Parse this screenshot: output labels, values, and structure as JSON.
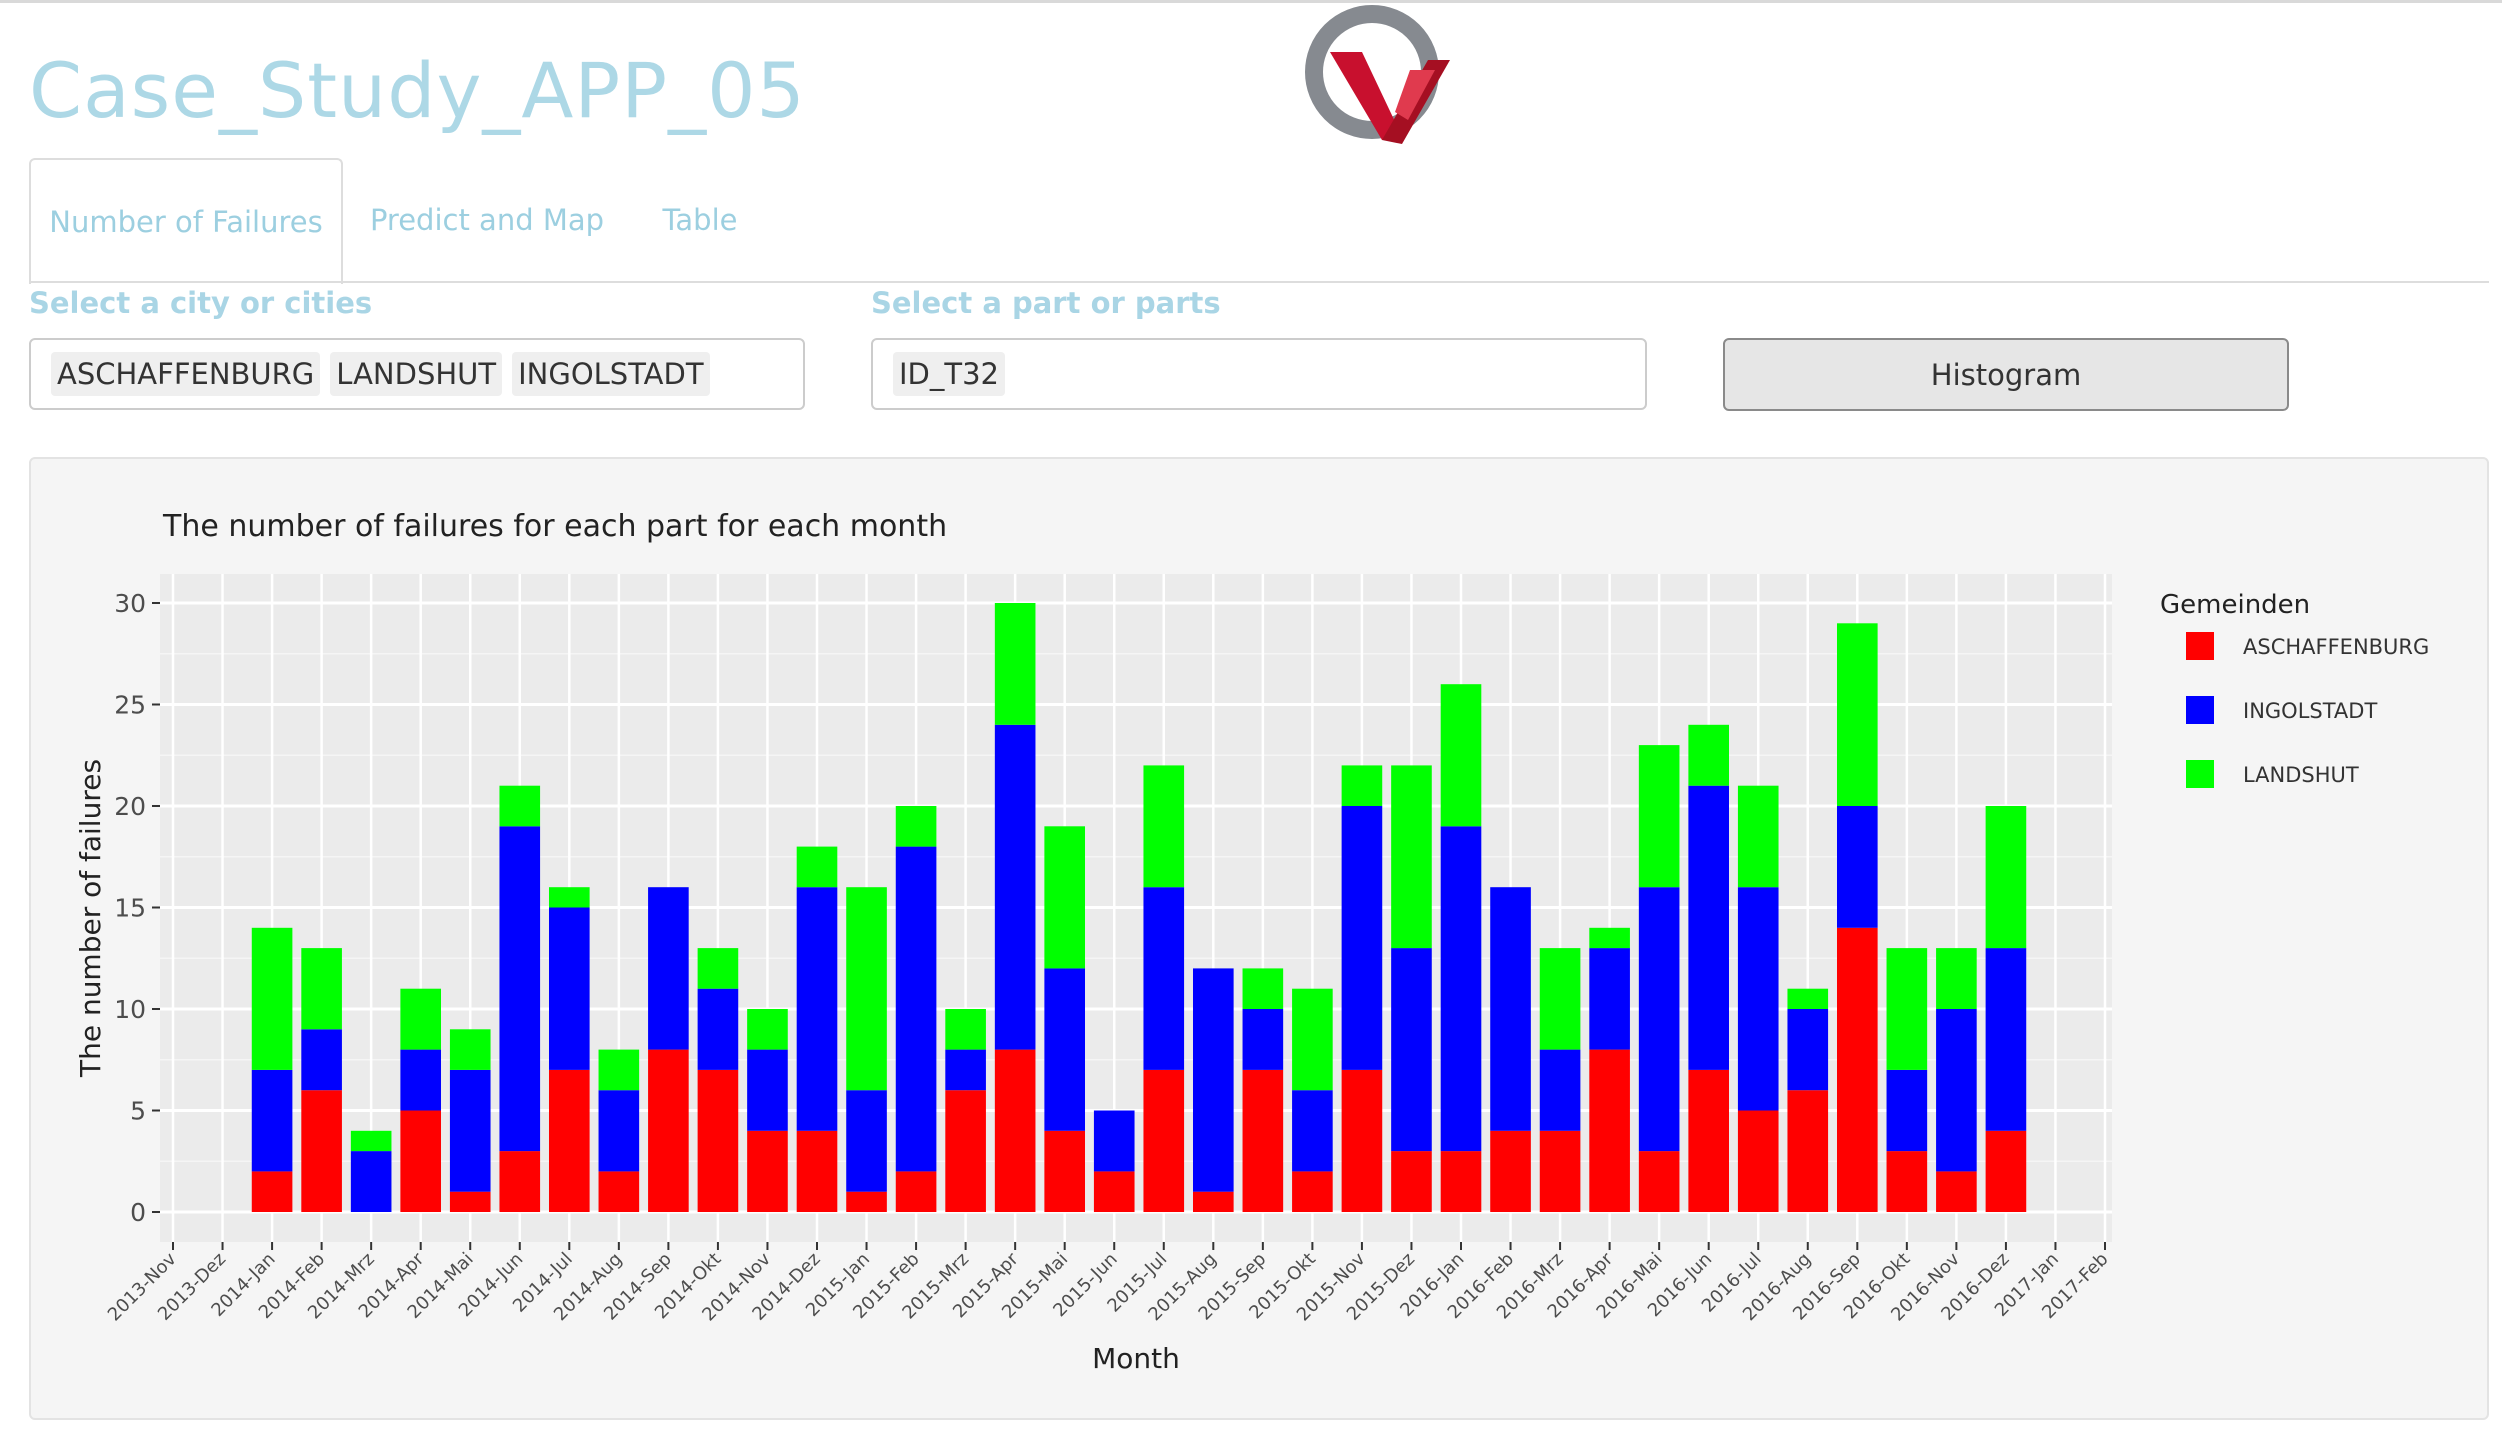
{
  "app": {
    "title": "Case_Study_APP_05"
  },
  "tabs": [
    {
      "label": "Number of Failures"
    },
    {
      "label": "Predict and Map"
    },
    {
      "label": "Table"
    }
  ],
  "controls": {
    "city_label": "Select a city or cities",
    "cities": [
      "ASCHAFFENBURG",
      "LANDSHUT",
      "INGOLSTADT"
    ],
    "part_label": "Select a part or parts",
    "parts": [
      "ID_T32"
    ],
    "histogram_button": "Histogram"
  },
  "colors": {
    "accent": "#add8e6",
    "aschaffenburg": "#ff0000",
    "ingolstadt": "#0000ff",
    "landshut": "#00ff00"
  },
  "chart_data": {
    "type": "bar",
    "stacked": true,
    "title": "The number of failures for each part for each month",
    "xlabel": "Month",
    "ylabel": "The number of failures",
    "ylim": [
      0,
      30
    ],
    "yticks": [
      0,
      5,
      10,
      15,
      20,
      25,
      30
    ],
    "legend_title": "Gemeinden",
    "legend_position": "right",
    "grid": true,
    "categories": [
      "2013-Nov",
      "2013-Dez",
      "2014-Jan",
      "2014-Feb",
      "2014-Mrz",
      "2014-Apr",
      "2014-Mai",
      "2014-Jun",
      "2014-Jul",
      "2014-Aug",
      "2014-Sep",
      "2014-Okt",
      "2014-Nov",
      "2014-Dez",
      "2015-Jan",
      "2015-Feb",
      "2015-Mrz",
      "2015-Apr",
      "2015-Mai",
      "2015-Jun",
      "2015-Jul",
      "2015-Aug",
      "2015-Sep",
      "2015-Okt",
      "2015-Nov",
      "2015-Dez",
      "2016-Jan",
      "2016-Feb",
      "2016-Mrz",
      "2016-Apr",
      "2016-Mai",
      "2016-Jun",
      "2016-Jul",
      "2016-Aug",
      "2016-Sep",
      "2016-Okt",
      "2016-Nov",
      "2016-Dez",
      "2017-Jan",
      "2017-Feb"
    ],
    "series": [
      {
        "name": "ASCHAFFENBURG",
        "color": "#ff0000",
        "values": [
          0,
          0,
          2,
          6,
          0,
          5,
          1,
          3,
          7,
          2,
          8,
          7,
          4,
          4,
          1,
          2,
          6,
          8,
          4,
          2,
          7,
          1,
          7,
          2,
          7,
          3,
          3,
          4,
          4,
          8,
          3,
          7,
          5,
          6,
          14,
          3,
          2,
          4,
          0,
          0
        ]
      },
      {
        "name": "INGOLSTADT",
        "color": "#0000ff",
        "values": [
          0,
          0,
          5,
          3,
          3,
          3,
          6,
          16,
          8,
          4,
          8,
          4,
          4,
          12,
          5,
          16,
          2,
          16,
          8,
          3,
          9,
          11,
          3,
          4,
          13,
          10,
          16,
          12,
          4,
          5,
          13,
          14,
          11,
          4,
          6,
          4,
          8,
          9,
          0,
          0
        ]
      },
      {
        "name": "LANDSHUT",
        "color": "#00ff00",
        "values": [
          0,
          0,
          7,
          4,
          1,
          3,
          2,
          2,
          1,
          2,
          0,
          2,
          2,
          2,
          10,
          2,
          2,
          6,
          7,
          0,
          6,
          0,
          2,
          5,
          2,
          9,
          7,
          0,
          5,
          1,
          7,
          3,
          5,
          1,
          9,
          6,
          3,
          7,
          0,
          0
        ]
      }
    ]
  }
}
